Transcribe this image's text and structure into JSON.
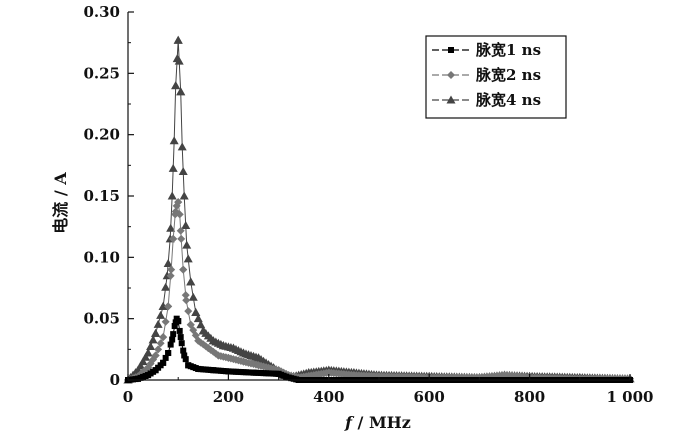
{
  "chart_data": {
    "type": "line",
    "xlabel_italic": "f",
    "xlabel_rest": " / MHz",
    "ylabel": "电流 / A",
    "xlim": [
      0,
      1000
    ],
    "ylim": [
      0,
      0.3
    ],
    "xticks": [
      0,
      200,
      400,
      600,
      800,
      1000
    ],
    "xtick_labels": [
      "0",
      "200",
      "400",
      "600",
      "800",
      "1 000"
    ],
    "yticks": [
      0,
      0.05,
      0.1,
      0.15,
      0.2,
      0.25,
      0.3
    ],
    "ytick_labels": [
      "0",
      "0.05",
      "0.10",
      "0.15",
      "0.20",
      "0.25",
      "0.30"
    ],
    "grid": false,
    "legend_position": "top-right",
    "series": [
      {
        "name": "脉宽1 ns",
        "marker": "square",
        "color": "#000000",
        "x": [
          0,
          20,
          40,
          55,
          70,
          80,
          88,
          93,
          97,
          100,
          103,
          107,
          112,
          120,
          140,
          170,
          200,
          250,
          300,
          320,
          340,
          1000
        ],
        "y": [
          0,
          0.001,
          0.004,
          0.008,
          0.014,
          0.022,
          0.033,
          0.044,
          0.05,
          0.048,
          0.04,
          0.03,
          0.02,
          0.012,
          0.009,
          0.008,
          0.007,
          0.006,
          0.005,
          0.002,
          0.0,
          0.0
        ]
      },
      {
        "name": "脉宽2 ns",
        "marker": "diamond",
        "color": "#777777",
        "x": [
          0,
          20,
          40,
          55,
          70,
          80,
          86,
          90,
          94,
          97,
          100,
          103,
          106,
          110,
          116,
          125,
          140,
          160,
          180,
          200,
          230,
          260,
          300,
          320,
          340,
          400,
          450,
          500,
          600,
          700,
          750,
          800,
          900,
          1000
        ],
        "y": [
          0,
          0.003,
          0.01,
          0.02,
          0.035,
          0.06,
          0.09,
          0.115,
          0.135,
          0.142,
          0.145,
          0.135,
          0.115,
          0.09,
          0.065,
          0.045,
          0.032,
          0.026,
          0.02,
          0.018,
          0.015,
          0.012,
          0.008,
          0.004,
          0.002,
          0.006,
          0.004,
          0.003,
          0.002,
          0.002,
          0.004,
          0.002,
          0.001,
          0.001
        ]
      },
      {
        "name": "脉宽4 ns",
        "marker": "triangle",
        "color": "#444444",
        "x": [
          0,
          20,
          40,
          55,
          70,
          78,
          84,
          88,
          92,
          95,
          98,
          100,
          102,
          105,
          108,
          112,
          117,
          125,
          135,
          150,
          170,
          190,
          210,
          230,
          260,
          290,
          310,
          330,
          360,
          400,
          450,
          500,
          600,
          700,
          750,
          800,
          900,
          1000
        ],
        "y": [
          0,
          0.008,
          0.022,
          0.038,
          0.06,
          0.085,
          0.115,
          0.15,
          0.195,
          0.24,
          0.262,
          0.277,
          0.26,
          0.235,
          0.19,
          0.15,
          0.11,
          0.08,
          0.055,
          0.04,
          0.032,
          0.028,
          0.026,
          0.022,
          0.018,
          0.01,
          0.004,
          0.003,
          0.006,
          0.008,
          0.006,
          0.004,
          0.003,
          0.002,
          0.004,
          0.003,
          0.002,
          0.001
        ]
      }
    ]
  }
}
